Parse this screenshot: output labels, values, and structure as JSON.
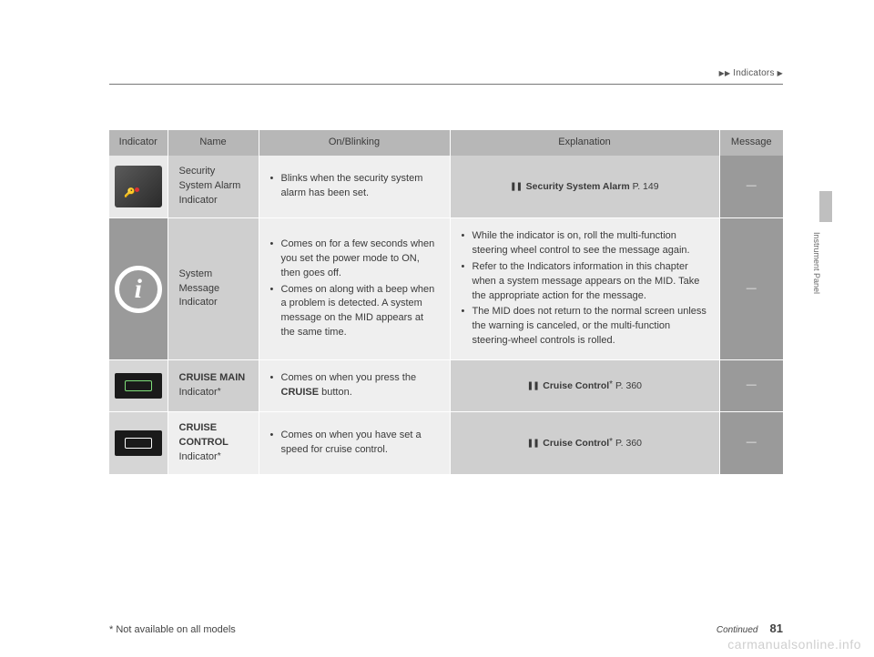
{
  "breadcrumb": {
    "section": "Indicators"
  },
  "sideTab": {
    "label": "Instrument Panel"
  },
  "headers": {
    "indicator": "Indicator",
    "name": "Name",
    "onblinking": "On/Blinking",
    "explanation": "Explanation",
    "message": "Message"
  },
  "rows": {
    "r1": {
      "name": "Security System Alarm Indicator",
      "onblinking": {
        "items": [
          "Blinks when the security system alarm has been set."
        ]
      },
      "explanation": {
        "refIcon": "❚❚",
        "refBold": "Security System Alarm",
        "refPage": " P. 149"
      },
      "message": "—"
    },
    "r2": {
      "name": "System Message Indicator",
      "onblinking": {
        "items": [
          "Comes on for a few seconds when you set the power mode to ON, then goes off.",
          "Comes on along with a beep when a problem is detected. A system message on the MID appears at the same time."
        ]
      },
      "explanation": {
        "items": [
          "While the indicator is on, roll the multi-function steering wheel control to see the message again.",
          "Refer to the Indicators information in this chapter when a system message appears on the MID. Take the appropriate action for the message.",
          "The MID does not return to the normal screen unless the warning is canceled, or the multi-function steering-wheel controls is rolled."
        ]
      },
      "message": "—"
    },
    "r3": {
      "nameBold": "CRUISE MAIN",
      "nameRest": " Indicator",
      "ast": "*",
      "onblinking": {
        "pre": "Comes on when you press the ",
        "bold": "CRUISE",
        "post": " button."
      },
      "explanation": {
        "refIcon": "❚❚",
        "refBold": "Cruise Control",
        "refAst": "*",
        "refPage": " P. 360"
      },
      "message": "—"
    },
    "r4": {
      "nameBold": "CRUISE CONTROL",
      "nameRest": " Indicator",
      "ast": "*",
      "onblinking": {
        "items": [
          "Comes on when you have set a speed for cruise control."
        ]
      },
      "explanation": {
        "refIcon": "❚❚",
        "refBold": "Cruise Control",
        "refAst": "*",
        "refPage": " P. 360"
      },
      "message": "—"
    }
  },
  "footnote": "* Not available on all models",
  "continued": "Continued",
  "pageNum": "81",
  "watermark": "carmanualsonline.info",
  "colors": {
    "headerBg": "#b7b7b7",
    "lightBg": "#efefef",
    "medBg": "#cfcfcf",
    "darkBg": "#9a9a9a"
  }
}
